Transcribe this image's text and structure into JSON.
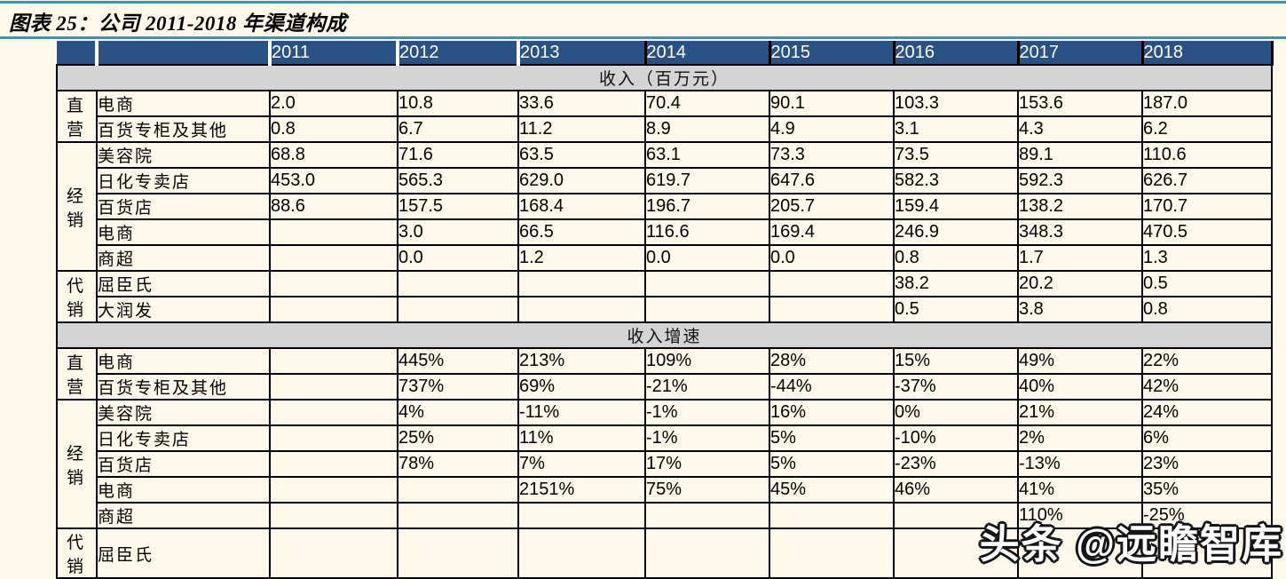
{
  "title": "图表 25：公司 2011-2018 年渠道构成",
  "watermark": "头条 @远瞻智库",
  "colors": {
    "accent_blue": "#1e9cd9",
    "header_blue": "#2a5183",
    "page_cream": "#fdf8e9",
    "band_gray": "#d4d4d4",
    "border_black": "#000000"
  },
  "chart_data": {
    "type": "table",
    "title": "公司 2011-2018 年渠道构成",
    "years": [
      "2011",
      "2012",
      "2013",
      "2014",
      "2015",
      "2016",
      "2017",
      "2018"
    ],
    "sections": [
      {
        "header": "收入（百万元）",
        "groups": [
          {
            "name": "直营",
            "rows": [
              {
                "channel": "电商",
                "values": [
                  "2.0",
                  "10.8",
                  "33.6",
                  "70.4",
                  "90.1",
                  "103.3",
                  "153.6",
                  "187.0"
                ]
              },
              {
                "channel": "百货专柜及其他",
                "values": [
                  "0.8",
                  "6.7",
                  "11.2",
                  "8.9",
                  "4.9",
                  "3.1",
                  "4.3",
                  "6.2"
                ]
              }
            ]
          },
          {
            "name": "经销",
            "rows": [
              {
                "channel": "美容院",
                "values": [
                  "68.8",
                  "71.6",
                  "63.5",
                  "63.1",
                  "73.3",
                  "73.5",
                  "89.1",
                  "110.6"
                ]
              },
              {
                "channel": "日化专卖店",
                "values": [
                  "453.0",
                  "565.3",
                  "629.0",
                  "619.7",
                  "647.6",
                  "582.3",
                  "592.3",
                  "626.7"
                ]
              },
              {
                "channel": "百货店",
                "values": [
                  "88.6",
                  "157.5",
                  "168.4",
                  "196.7",
                  "205.7",
                  "159.4",
                  "138.2",
                  "170.7"
                ]
              },
              {
                "channel": "电商",
                "values": [
                  "",
                  "3.0",
                  "66.5",
                  "116.6",
                  "169.4",
                  "246.9",
                  "348.3",
                  "470.5"
                ]
              },
              {
                "channel": "商超",
                "values": [
                  "",
                  "0.0",
                  "1.2",
                  "0.0",
                  "0.0",
                  "0.8",
                  "1.7",
                  "1.3"
                ]
              }
            ]
          },
          {
            "name": "代销",
            "rows": [
              {
                "channel": "屈臣氏",
                "values": [
                  "",
                  "",
                  "",
                  "",
                  "",
                  "38.2",
                  "20.2",
                  "0.5"
                ]
              },
              {
                "channel": "大润发",
                "values": [
                  "",
                  "",
                  "",
                  "",
                  "",
                  "0.5",
                  "3.8",
                  "0.8"
                ]
              }
            ]
          }
        ]
      },
      {
        "header": "收入增速",
        "groups": [
          {
            "name": "直营",
            "rows": [
              {
                "channel": "电商",
                "values": [
                  "",
                  "445%",
                  "213%",
                  "109%",
                  "28%",
                  "15%",
                  "49%",
                  "22%"
                ]
              },
              {
                "channel": "百货专柜及其他",
                "values": [
                  "",
                  "737%",
                  "69%",
                  "-21%",
                  "-44%",
                  "-37%",
                  "40%",
                  "42%"
                ]
              }
            ]
          },
          {
            "name": "经销",
            "rows": [
              {
                "channel": "美容院",
                "values": [
                  "",
                  "4%",
                  "-11%",
                  "-1%",
                  "16%",
                  "0%",
                  "21%",
                  "24%"
                ]
              },
              {
                "channel": "日化专卖店",
                "values": [
                  "",
                  "25%",
                  "11%",
                  "-1%",
                  "5%",
                  "-10%",
                  "2%",
                  "6%"
                ]
              },
              {
                "channel": "百货店",
                "values": [
                  "",
                  "78%",
                  "7%",
                  "17%",
                  "5%",
                  "-23%",
                  "-13%",
                  "23%"
                ]
              },
              {
                "channel": "电商",
                "values": [
                  "",
                  "",
                  "2151%",
                  "75%",
                  "45%",
                  "46%",
                  "41%",
                  "35%"
                ]
              },
              {
                "channel": "商超",
                "values": [
                  "",
                  "",
                  "",
                  "",
                  "",
                  "",
                  "110%",
                  "-25%"
                ]
              }
            ]
          },
          {
            "name": "代销",
            "rows": [
              {
                "channel": "屈臣氏",
                "values": [
                  "",
                  "",
                  "",
                  "",
                  "",
                  "",
                  "",
                  ""
                ]
              }
            ]
          }
        ]
      }
    ]
  }
}
